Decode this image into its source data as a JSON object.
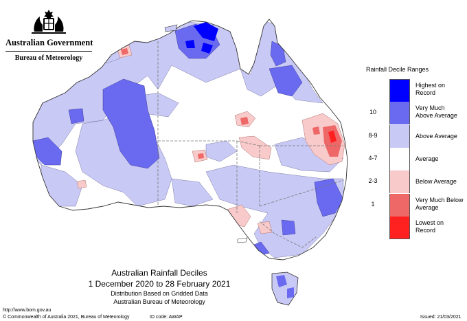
{
  "header": {
    "gov_name": "Australian Government",
    "bureau_name": "Bureau of Meteorology"
  },
  "legend": {
    "title": "Rainfall Decile Ranges",
    "items": [
      {
        "decile": "",
        "label": "Highest on Record",
        "color": "#0000ff"
      },
      {
        "decile": "10",
        "label": "Very Much Above Average",
        "color": "#6a6af0"
      },
      {
        "decile": "8-9",
        "label": "Above Average",
        "color": "#c9c9f5"
      },
      {
        "decile": "4-7",
        "label": "Average",
        "color": "#ffffff"
      },
      {
        "decile": "2-3",
        "label": "Below Average",
        "color": "#f8caca"
      },
      {
        "decile": "1",
        "label": "Very Much Below Average",
        "color": "#ee6868"
      },
      {
        "decile": "",
        "label": "Lowest on Record",
        "color": "#ff2020"
      }
    ]
  },
  "map": {
    "title": "Australian Rainfall Deciles",
    "period": "1 December 2020 to 28 February 2021",
    "basis": "Distribution Based on Gridded Data",
    "source": "Australian Bureau of Meteorology"
  },
  "footer": {
    "url": "http://www.bom.gov.au",
    "copyright": "© Commonwealth of Australia 2021, Bureau of Meteorology",
    "id_code": "ID code: AWAP",
    "issued": "Issued: 21/03/2021"
  }
}
